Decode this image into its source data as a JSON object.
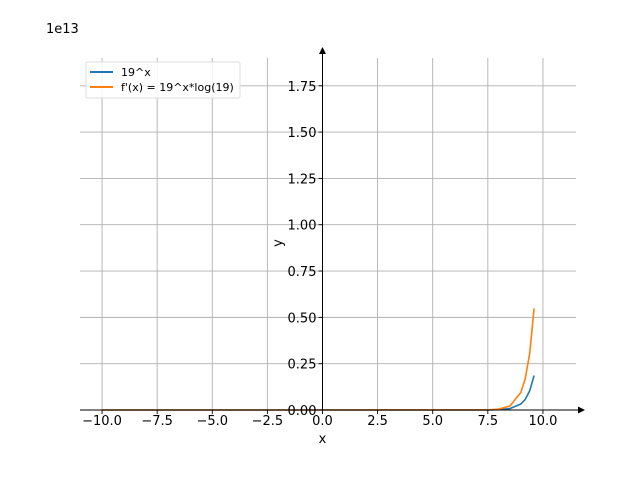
{
  "chart_data": {
    "type": "line",
    "title": "",
    "xlabel": "x",
    "ylabel": "y",
    "scale_label": "1e13",
    "xlim": [
      -11.0,
      11.5
    ],
    "ylim": [
      0,
      1.9
    ],
    "y_unit_multiplier": 10000000000000.0,
    "grid": true,
    "legend_position": "top-left",
    "x_ticks": [
      -10.0,
      -7.5,
      -5.0,
      -2.5,
      0.0,
      2.5,
      5.0,
      7.5,
      10.0
    ],
    "x_tick_labels": [
      "−10.0",
      "−7.5",
      "−5.0",
      "−2.5",
      "0.0",
      "2.5",
      "5.0",
      "7.5",
      "10.0"
    ],
    "y_ticks": [
      0.0,
      0.25,
      0.5,
      0.75,
      1.0,
      1.25,
      1.5,
      1.75
    ],
    "y_tick_labels": [
      "0.00",
      "0.25",
      "0.50",
      "0.75",
      "1.00",
      "1.25",
      "1.50",
      "1.75"
    ],
    "series": [
      {
        "name": "19^x",
        "color": "#1f77b4",
        "x": [
          -10,
          0,
          7.5,
          8.0,
          8.5,
          9.0,
          9.2,
          9.4,
          9.6,
          9.7
        ],
        "y": [
          0,
          0,
          0.0001,
          0.0017,
          0.0073,
          0.0323,
          0.0579,
          0.1038,
          0.1862,
          0.1862
        ]
      },
      {
        "name": "f'(x) = 19^x*log(19)",
        "color": "#ff7f0e",
        "x": [
          -10,
          0,
          7.5,
          8.0,
          8.5,
          9.0,
          9.2,
          9.4,
          9.6,
          9.7
        ],
        "y": [
          0,
          0,
          0.0003,
          0.005,
          0.0214,
          0.0951,
          0.1705,
          0.3056,
          0.5482,
          0.5482
        ]
      }
    ]
  }
}
